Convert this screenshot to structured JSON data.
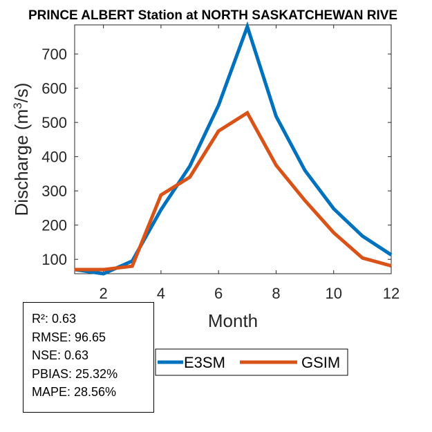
{
  "chart_data": {
    "type": "line",
    "title": "PRINCE ALBERT  Station at  NORTH SASKATCHEWAN RIVE",
    "xlabel": "Month",
    "ylabel_main": "Discharge (m",
    "ylabel_sup": "3",
    "ylabel_end": "/s)",
    "xlim": [
      1,
      12
    ],
    "ylim": [
      58,
      785
    ],
    "xticks": [
      2,
      4,
      6,
      8,
      10,
      12
    ],
    "xtick_labels": [
      "2",
      "4",
      "6",
      "8",
      "10",
      "12"
    ],
    "yticks": [
      100,
      200,
      300,
      400,
      500,
      600,
      700
    ],
    "ytick_labels": [
      "100",
      "200",
      "300",
      "400",
      "500",
      "600",
      "700"
    ],
    "grid": false,
    "legend_placement": "bottom",
    "x": [
      1,
      2,
      3,
      4,
      5,
      6,
      7,
      8,
      9,
      10,
      11,
      12
    ],
    "series": [
      {
        "name": "E3SM",
        "color": "#0072BD",
        "values": [
          70,
          58,
          95,
          245,
          372,
          550,
          780,
          518,
          360,
          248,
          168,
          113
        ]
      },
      {
        "name": "GSIM",
        "color": "#D95319",
        "values": [
          70,
          70,
          80,
          288,
          340,
          475,
          528,
          375,
          272,
          178,
          104,
          81
        ]
      }
    ]
  },
  "stats": {
    "r2": "R²: 0.63",
    "rmse": "RMSE: 96.65",
    "nse": "NSE: 0.63",
    "pbias": "PBIAS: 25.32%",
    "mape": "MAPE: 28.56%"
  }
}
